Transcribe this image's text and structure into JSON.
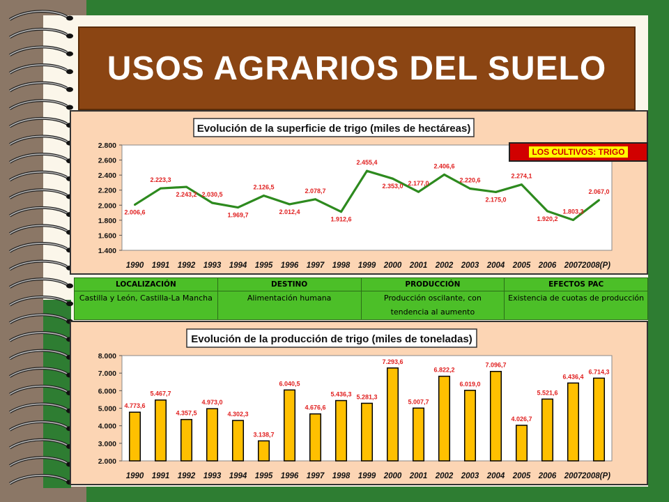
{
  "page": {
    "title": "USOS AGRARIOS DEL SUELO"
  },
  "badge": {
    "label": "LOS CULTIVOS: TRIGO"
  },
  "table": {
    "headers": [
      "LOCALIZACIÓN",
      "DESTINO",
      "PRODUCCIÓN",
      "EFECTOS PAC"
    ],
    "row": [
      "Castilla y León, Castilla-La Mancha",
      "Alimentación humana",
      "Producción oscilante, con tendencia al aumento",
      "Existencia de cuotas de producción"
    ]
  },
  "chart_data": [
    {
      "type": "line",
      "title": "Evolución de la superficie de trigo (miles de hectáreas)",
      "categories": [
        "1990",
        "1991",
        "1992",
        "1993",
        "1994",
        "1995",
        "1996",
        "1997",
        "1998",
        "1999",
        "2000",
        "2001",
        "2002",
        "2003",
        "2004",
        "2005",
        "2006",
        "2007",
        "2008(P)"
      ],
      "values": [
        2006.6,
        2223.3,
        2243.2,
        2030.5,
        1969.7,
        2126.5,
        2012.4,
        2078.7,
        1912.6,
        2455.4,
        2353.0,
        2177.0,
        2406.6,
        2220.6,
        2175.0,
        2274.1,
        1920.2,
        1803.3,
        2067.0
      ],
      "value_labels": [
        "2.006,6",
        "2.223,3",
        "2.243,2",
        "2.030,5",
        "1.969,7",
        "2.126,5",
        "2.012,4",
        "2.078,7",
        "1.912,6",
        "2.455,4",
        "2.353,0",
        "2.177,0",
        "2.406,6",
        "2.220,6",
        "2.175,0",
        "2.274,1",
        "1.920,2",
        "1.803,3",
        "2.067,0"
      ],
      "yticks": [
        "1.400",
        "1.600",
        "1.800",
        "2.000",
        "2.200",
        "2.400",
        "2.600",
        "2.800"
      ],
      "ylim": [
        1400,
        2800
      ],
      "grid": false,
      "colors": {
        "line": "#2d8a1e",
        "labels": "#e02020"
      }
    },
    {
      "type": "bar",
      "title": "Evolución de la producción de trigo (miles de toneladas)",
      "categories": [
        "1990",
        "1991",
        "1992",
        "1993",
        "1994",
        "1995",
        "1996",
        "1997",
        "1998",
        "1999",
        "2000",
        "2001",
        "2002",
        "2003",
        "2004",
        "2005",
        "2006",
        "2007",
        "2008(P)"
      ],
      "values": [
        4773.6,
        5467.7,
        4357.5,
        4973.0,
        4302.3,
        3138.7,
        6040.5,
        4676.6,
        5436.3,
        5281.3,
        7293.6,
        5007.7,
        6822.2,
        6019.0,
        7096.7,
        4026.7,
        5521.6,
        6436.4,
        6714.3
      ],
      "value_labels": [
        "4.773,6",
        "5.467,7",
        "4.357,5",
        "4.973,0",
        "4.302,3",
        "3.138,7",
        "6.040,5",
        "4.676,6",
        "5.436,3",
        "5.281,3",
        "7.293,6",
        "5.007,7",
        "6.822,2",
        "6.019,0",
        "7.096,7",
        "4.026,7",
        "5.521,6",
        "6.436,4",
        "6.714,3"
      ],
      "yticks": [
        "2.000",
        "3.000",
        "4.000",
        "5.000",
        "6.000",
        "7.000",
        "8.000"
      ],
      "ylim": [
        2000,
        8000
      ],
      "grid": false,
      "colors": {
        "bar": "#ffc000",
        "labels": "#e02020"
      }
    }
  ]
}
